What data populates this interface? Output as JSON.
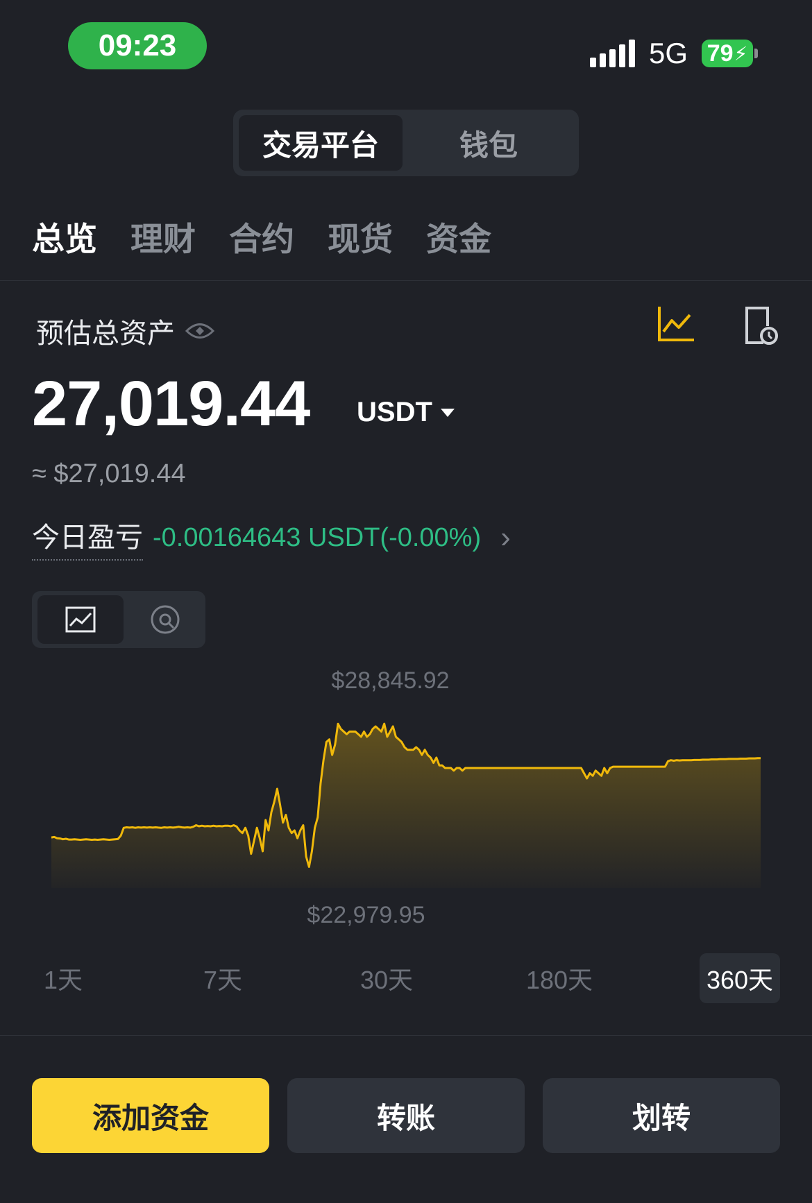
{
  "status_bar": {
    "time": "09:23",
    "network": "5G",
    "battery": "79"
  },
  "segment": {
    "active": "交易平台",
    "inactive": "钱包"
  },
  "tabs": [
    {
      "label": "总览",
      "active": true
    },
    {
      "label": "理财",
      "active": false
    },
    {
      "label": "合约",
      "active": false
    },
    {
      "label": "现货",
      "active": false
    },
    {
      "label": "资金",
      "active": false
    }
  ],
  "balance": {
    "label": "预估总资产",
    "amount": "27,019.44",
    "unit": "USDT",
    "approx": "≈ $27,019.44",
    "pnl_label": "今日盈亏",
    "pnl_value": "-0.00164643 USDT(-0.00%)"
  },
  "chart_data": {
    "type": "area",
    "max_label": "$28,845.92",
    "min_label": "$22,979.95",
    "color": "#f0b90b",
    "ylim": [
      22979.95,
      28845.92
    ],
    "y": [
      24230,
      24250,
      24200,
      24190,
      24160,
      24180,
      24150,
      24150,
      24160,
      24150,
      24140,
      24150,
      24160,
      24150,
      24140,
      24150,
      24140,
      24150,
      24160,
      24150,
      24140,
      24150,
      24160,
      24170,
      24300,
      24600,
      24620,
      24610,
      24620,
      24600,
      24620,
      24610,
      24620,
      24610,
      24620,
      24610,
      24620,
      24610,
      24600,
      24620,
      24610,
      24620,
      24610,
      24620,
      24640,
      24620,
      24610,
      24620,
      24610,
      24640,
      24700,
      24660,
      24680,
      24660,
      24670,
      24660,
      24680,
      24660,
      24670,
      24660,
      24680,
      24680,
      24660,
      24700,
      24650,
      24500,
      24400,
      24600,
      24300,
      23600,
      24100,
      24600,
      24200,
      23700,
      24900,
      24500,
      25200,
      25600,
      26100,
      25500,
      24800,
      25100,
      24600,
      24400,
      24500,
      24200,
      24500,
      24700,
      23500,
      23100,
      23700,
      24600,
      25000,
      26300,
      27200,
      27900,
      28000,
      27400,
      27800,
      28600,
      28400,
      28300,
      28200,
      28300,
      28300,
      28300,
      28200,
      28100,
      28300,
      28100,
      28200,
      28400,
      28500,
      28400,
      28300,
      28600,
      28100,
      28300,
      28500,
      28100,
      28000,
      27900,
      27700,
      27600,
      27600,
      27600,
      27700,
      27600,
      27400,
      27600,
      27400,
      27300,
      27100,
      27300,
      27000,
      27000,
      26900,
      26900,
      26900,
      26800,
      26900,
      26900,
      26800,
      26900,
      26900,
      26900,
      26900,
      26900,
      26900,
      26900,
      26900,
      26900,
      26900,
      26900,
      26900,
      26900,
      26900,
      26900,
      26900,
      26900,
      26900,
      26900,
      26900,
      26900,
      26900,
      26900,
      26900,
      26900,
      26900,
      26900,
      26900,
      26900,
      26900,
      26900,
      26900,
      26900,
      26900,
      26900,
      26900,
      26900,
      26900,
      26900,
      26900,
      26900,
      26700,
      26500,
      26700,
      26600,
      26800,
      26700,
      26600,
      26900,
      26700,
      26900,
      26950,
      26950,
      26950,
      26950,
      26950,
      26950,
      26950,
      26950,
      26950,
      26950,
      26950,
      26950,
      26950,
      26950,
      26950,
      26950,
      26950,
      26950,
      26950,
      27160,
      27200,
      27180,
      27200,
      27190,
      27200,
      27200,
      27200,
      27200,
      27210,
      27210,
      27210,
      27220,
      27220,
      27220,
      27230,
      27230,
      27230,
      27240,
      27240,
      27240,
      27250,
      27250,
      27250,
      27250,
      27260,
      27260,
      27260,
      27270,
      27270,
      27270,
      27280,
      27280
    ]
  },
  "ranges": [
    {
      "label": "1天",
      "active": false
    },
    {
      "label": "7天",
      "active": false
    },
    {
      "label": "30天",
      "active": false
    },
    {
      "label": "180天",
      "active": false
    },
    {
      "label": "360天",
      "active": true
    }
  ],
  "actions": {
    "add_funds": "添加资金",
    "transfer": "转账",
    "internal_transfer": "划转"
  }
}
